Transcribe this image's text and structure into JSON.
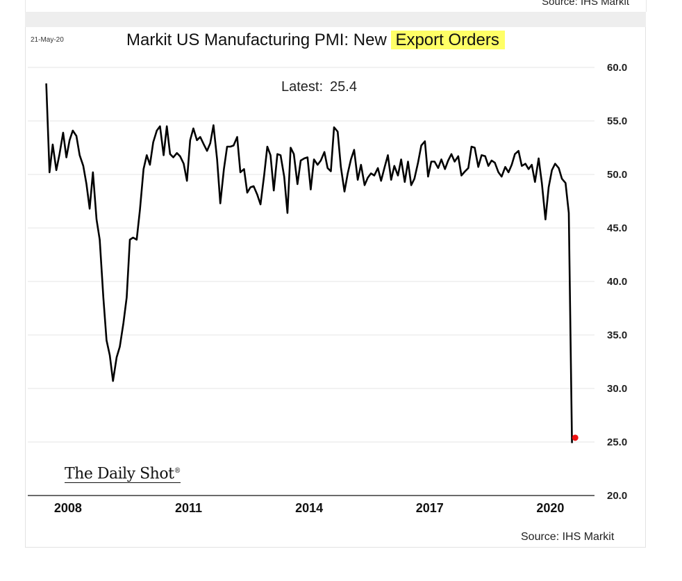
{
  "prev_panel": {
    "source": "Source: IHS Markit"
  },
  "chart_meta": {
    "date": "21-May-20",
    "title_main": "Markit US Manufacturing PMI: New ",
    "title_highlight": "Export Orders",
    "latest_label": "Latest:",
    "latest_value": "25.4",
    "brand": "The Daily Shot",
    "brand_mark": "®",
    "source": "Source: IHS Markit"
  },
  "colors": {
    "line": "#000000",
    "latest_marker": "#ee1111",
    "grid": "#e6e6e6",
    "highlight": "#ffff66"
  },
  "chart_data": {
    "type": "line",
    "title": "Markit US Manufacturing PMI: New Export Orders",
    "xlabel": "",
    "ylabel": "",
    "ylim": [
      20,
      60
    ],
    "y_ticks": [
      "20.0",
      "25.0",
      "30.0",
      "35.0",
      "40.0",
      "45.0",
      "50.0",
      "55.0",
      "60.0"
    ],
    "y_axis_position": "right",
    "x_range": [
      2007.0,
      2021.1
    ],
    "x_ticks": [
      {
        "label": "2008",
        "value": 2008.0
      },
      {
        "label": "2011",
        "value": 2011.0
      },
      {
        "label": "2014",
        "value": 2014.0
      },
      {
        "label": "2017",
        "value": 2017.0
      },
      {
        "label": "2020",
        "value": 2020.0
      }
    ],
    "grid": "horizontal",
    "series": [
      {
        "points": [
          [
            2007.46,
            58.5
          ],
          [
            2007.54,
            50.2
          ],
          [
            2007.62,
            52.8
          ],
          [
            2007.71,
            50.4
          ],
          [
            2007.79,
            51.9
          ],
          [
            2007.88,
            53.9
          ],
          [
            2007.96,
            51.6
          ],
          [
            2008.04,
            53.2
          ],
          [
            2008.12,
            54.1
          ],
          [
            2008.21,
            53.6
          ],
          [
            2008.29,
            51.8
          ],
          [
            2008.38,
            50.8
          ],
          [
            2008.46,
            49.1
          ],
          [
            2008.54,
            46.8
          ],
          [
            2008.62,
            50.2
          ],
          [
            2008.71,
            45.8
          ],
          [
            2008.79,
            43.9
          ],
          [
            2008.88,
            38.5
          ],
          [
            2008.96,
            34.5
          ],
          [
            2009.04,
            33.1
          ],
          [
            2009.12,
            30.7
          ],
          [
            2009.21,
            32.9
          ],
          [
            2009.29,
            33.9
          ],
          [
            2009.38,
            36.1
          ],
          [
            2009.46,
            38.5
          ],
          [
            2009.54,
            43.9
          ],
          [
            2009.62,
            44.1
          ],
          [
            2009.71,
            43.9
          ],
          [
            2009.79,
            46.7
          ],
          [
            2009.88,
            50.5
          ],
          [
            2009.96,
            51.8
          ],
          [
            2010.04,
            50.9
          ],
          [
            2010.12,
            53.0
          ],
          [
            2010.21,
            54.1
          ],
          [
            2010.29,
            54.5
          ],
          [
            2010.38,
            51.8
          ],
          [
            2010.46,
            54.5
          ],
          [
            2010.54,
            51.9
          ],
          [
            2010.62,
            51.6
          ],
          [
            2010.71,
            52.0
          ],
          [
            2010.79,
            51.7
          ],
          [
            2010.88,
            51.0
          ],
          [
            2010.96,
            49.4
          ],
          [
            2011.04,
            53.2
          ],
          [
            2011.12,
            54.3
          ],
          [
            2011.21,
            53.2
          ],
          [
            2011.29,
            53.5
          ],
          [
            2011.38,
            52.8
          ],
          [
            2011.46,
            52.2
          ],
          [
            2011.54,
            52.9
          ],
          [
            2011.62,
            54.6
          ],
          [
            2011.71,
            51.4
          ],
          [
            2011.79,
            47.3
          ],
          [
            2011.88,
            50.5
          ],
          [
            2011.96,
            52.6
          ],
          [
            2012.04,
            52.6
          ],
          [
            2012.12,
            52.7
          ],
          [
            2012.21,
            53.5
          ],
          [
            2012.29,
            50.2
          ],
          [
            2012.38,
            50.5
          ],
          [
            2012.46,
            48.3
          ],
          [
            2012.54,
            48.8
          ],
          [
            2012.62,
            48.9
          ],
          [
            2012.71,
            48.1
          ],
          [
            2012.79,
            47.2
          ],
          [
            2012.88,
            49.9
          ],
          [
            2012.96,
            52.6
          ],
          [
            2013.04,
            51.8
          ],
          [
            2013.12,
            48.5
          ],
          [
            2013.21,
            51.9
          ],
          [
            2013.29,
            51.8
          ],
          [
            2013.38,
            49.8
          ],
          [
            2013.46,
            46.4
          ],
          [
            2013.54,
            52.5
          ],
          [
            2013.62,
            51.9
          ],
          [
            2013.71,
            49.1
          ],
          [
            2013.79,
            51.3
          ],
          [
            2013.88,
            51.5
          ],
          [
            2013.96,
            51.6
          ],
          [
            2014.04,
            48.6
          ],
          [
            2014.12,
            51.4
          ],
          [
            2014.21,
            50.9
          ],
          [
            2014.29,
            51.3
          ],
          [
            2014.38,
            52.1
          ],
          [
            2014.46,
            50.6
          ],
          [
            2014.54,
            50.3
          ],
          [
            2014.62,
            54.4
          ],
          [
            2014.71,
            54.0
          ],
          [
            2014.79,
            50.7
          ],
          [
            2014.88,
            48.4
          ],
          [
            2014.96,
            50.1
          ],
          [
            2015.04,
            51.4
          ],
          [
            2015.12,
            52.3
          ],
          [
            2015.21,
            49.5
          ],
          [
            2015.29,
            50.9
          ],
          [
            2015.38,
            49.0
          ],
          [
            2015.46,
            49.7
          ],
          [
            2015.54,
            50.1
          ],
          [
            2015.62,
            49.9
          ],
          [
            2015.71,
            50.6
          ],
          [
            2015.79,
            49.4
          ],
          [
            2015.88,
            50.7
          ],
          [
            2015.96,
            51.8
          ],
          [
            2016.04,
            49.5
          ],
          [
            2016.12,
            50.8
          ],
          [
            2016.21,
            49.9
          ],
          [
            2016.29,
            51.4
          ],
          [
            2016.38,
            49.3
          ],
          [
            2016.46,
            51.2
          ],
          [
            2016.54,
            49.0
          ],
          [
            2016.62,
            49.6
          ],
          [
            2016.71,
            51.1
          ],
          [
            2016.79,
            52.7
          ],
          [
            2016.88,
            53.1
          ],
          [
            2016.96,
            49.8
          ],
          [
            2017.04,
            51.2
          ],
          [
            2017.12,
            51.2
          ],
          [
            2017.21,
            50.6
          ],
          [
            2017.29,
            51.4
          ],
          [
            2017.38,
            50.5
          ],
          [
            2017.46,
            51.3
          ],
          [
            2017.54,
            51.9
          ],
          [
            2017.62,
            51.2
          ],
          [
            2017.71,
            51.7
          ],
          [
            2017.79,
            49.9
          ],
          [
            2017.88,
            50.3
          ],
          [
            2017.96,
            50.6
          ],
          [
            2018.04,
            52.6
          ],
          [
            2018.12,
            52.5
          ],
          [
            2018.21,
            50.7
          ],
          [
            2018.29,
            51.8
          ],
          [
            2018.38,
            51.7
          ],
          [
            2018.46,
            50.8
          ],
          [
            2018.54,
            51.3
          ],
          [
            2018.62,
            51.1
          ],
          [
            2018.71,
            50.2
          ],
          [
            2018.79,
            49.8
          ],
          [
            2018.88,
            50.7
          ],
          [
            2018.96,
            50.2
          ],
          [
            2019.04,
            50.9
          ],
          [
            2019.12,
            51.9
          ],
          [
            2019.21,
            52.2
          ],
          [
            2019.29,
            50.8
          ],
          [
            2019.38,
            51.0
          ],
          [
            2019.46,
            50.5
          ],
          [
            2019.54,
            50.9
          ],
          [
            2019.62,
            49.3
          ],
          [
            2019.71,
            51.5
          ],
          [
            2019.79,
            49.2
          ],
          [
            2019.88,
            45.8
          ],
          [
            2019.96,
            48.8
          ],
          [
            2020.04,
            50.4
          ],
          [
            2020.12,
            51.0
          ],
          [
            2020.21,
            50.6
          ],
          [
            2020.29,
            49.6
          ],
          [
            2020.38,
            49.2
          ],
          [
            2020.46,
            46.4
          ],
          [
            2020.54,
            24.9
          ]
        ]
      }
    ],
    "latest": {
      "x": 2020.62,
      "y": 25.4
    }
  }
}
